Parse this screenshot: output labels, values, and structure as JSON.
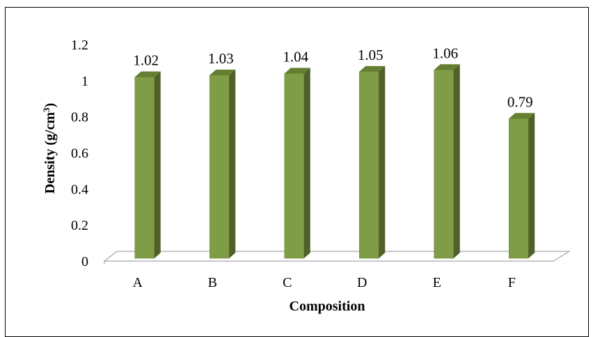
{
  "chart_data": {
    "type": "bar",
    "categories": [
      "A",
      "B",
      "C",
      "D",
      "E",
      "F"
    ],
    "values": [
      1.02,
      1.03,
      1.04,
      1.05,
      1.06,
      0.79
    ],
    "data_labels": [
      "1.02",
      "1.03",
      "1.04",
      "1.05",
      "1.06",
      "0.79"
    ],
    "xlabel": "Composition",
    "ylabel": "Density (g/cm³)",
    "ylabel_main": "Density (g/cm",
    "ylabel_sup": "3",
    "ylabel_end": ")",
    "ylim": [
      0,
      1.2
    ],
    "yticks": [
      0,
      0.2,
      0.4,
      0.6,
      0.8,
      1,
      1.2
    ],
    "ytick_labels": [
      "0",
      "0.2",
      "0.4",
      "0.6",
      "0.8",
      "1",
      "1.2"
    ],
    "grid": false,
    "legend": "none",
    "style": "3d-column"
  },
  "colors": {
    "bar_front": "#7f9c46",
    "bar_side": "#4f6128",
    "bar_top": "#647e32",
    "floor": "#ffffff",
    "floor_stroke": "#a6a6a6"
  }
}
